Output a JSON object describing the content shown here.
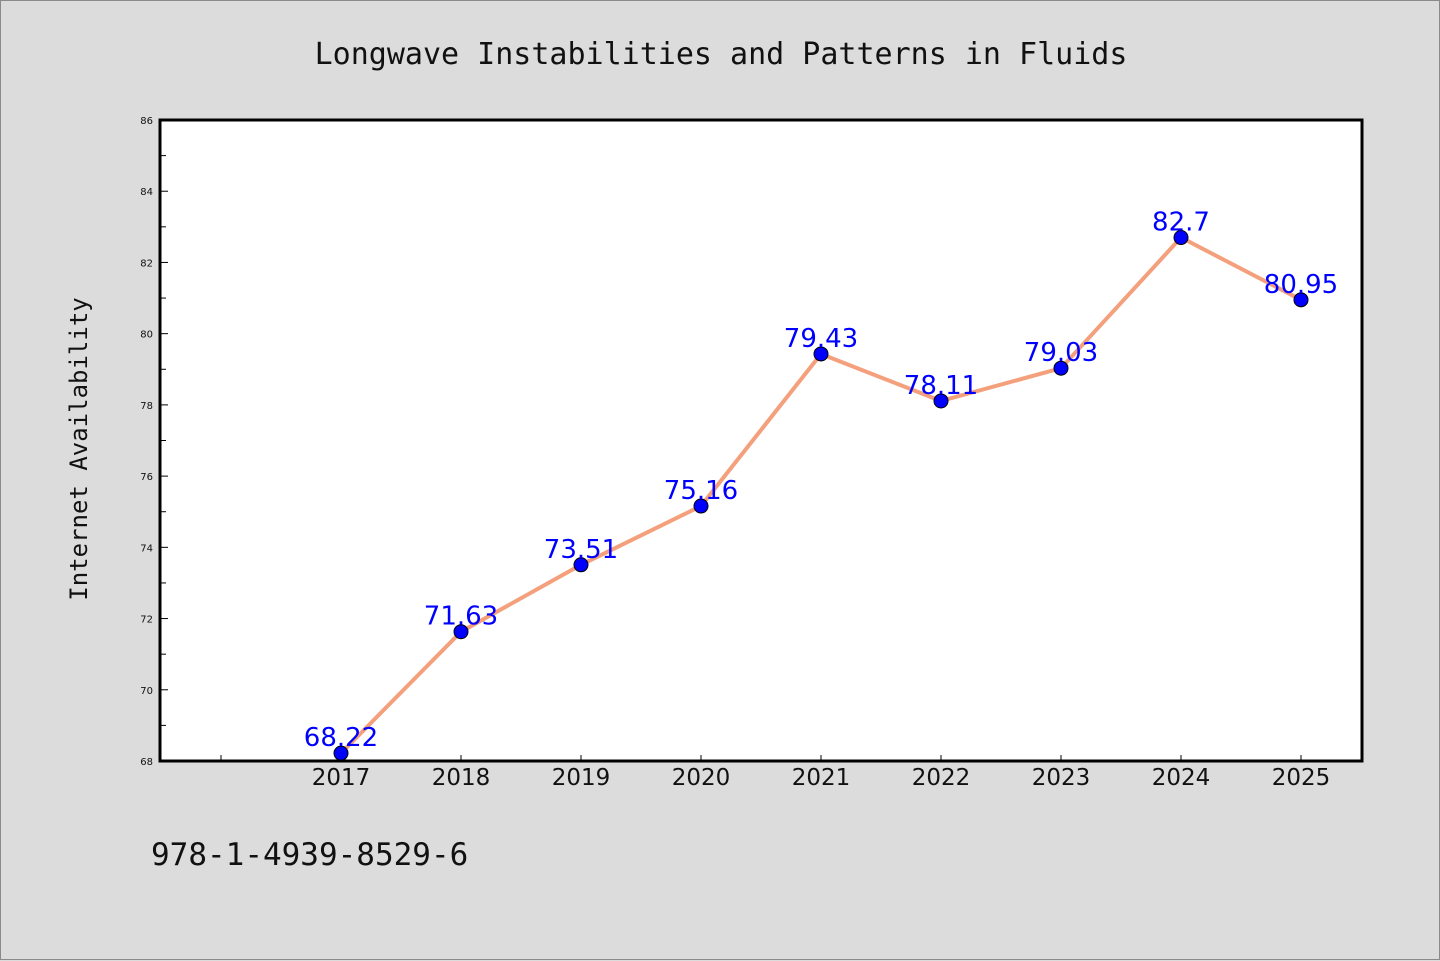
{
  "chart_data": {
    "type": "line",
    "title": "Longwave Instabilities and Patterns in Fluids",
    "xlabel": "",
    "ylabel": "Internet Availability",
    "categories": [
      "2017",
      "2018",
      "2019",
      "2020",
      "2021",
      "2022",
      "2023",
      "2024",
      "2025"
    ],
    "values": [
      68.22,
      71.63,
      73.51,
      75.16,
      79.43,
      78.11,
      79.03,
      82.7,
      80.95
    ],
    "data_labels": [
      "68.22",
      "71.63",
      "73.51",
      "75.16",
      "79.43",
      "78.11",
      "79.03",
      "82.7",
      "80.95"
    ],
    "ylim": [
      68,
      86
    ],
    "yticks": [
      "68",
      "70",
      "72",
      "74",
      "76",
      "78",
      "80",
      "82",
      "84",
      "86"
    ],
    "grid": false,
    "legend": "none",
    "line_color": "#f4a07c",
    "marker_color": "#0000ff",
    "label_color": "#0000ff"
  },
  "footer": {
    "isbn": "978-1-4939-8529-6"
  }
}
